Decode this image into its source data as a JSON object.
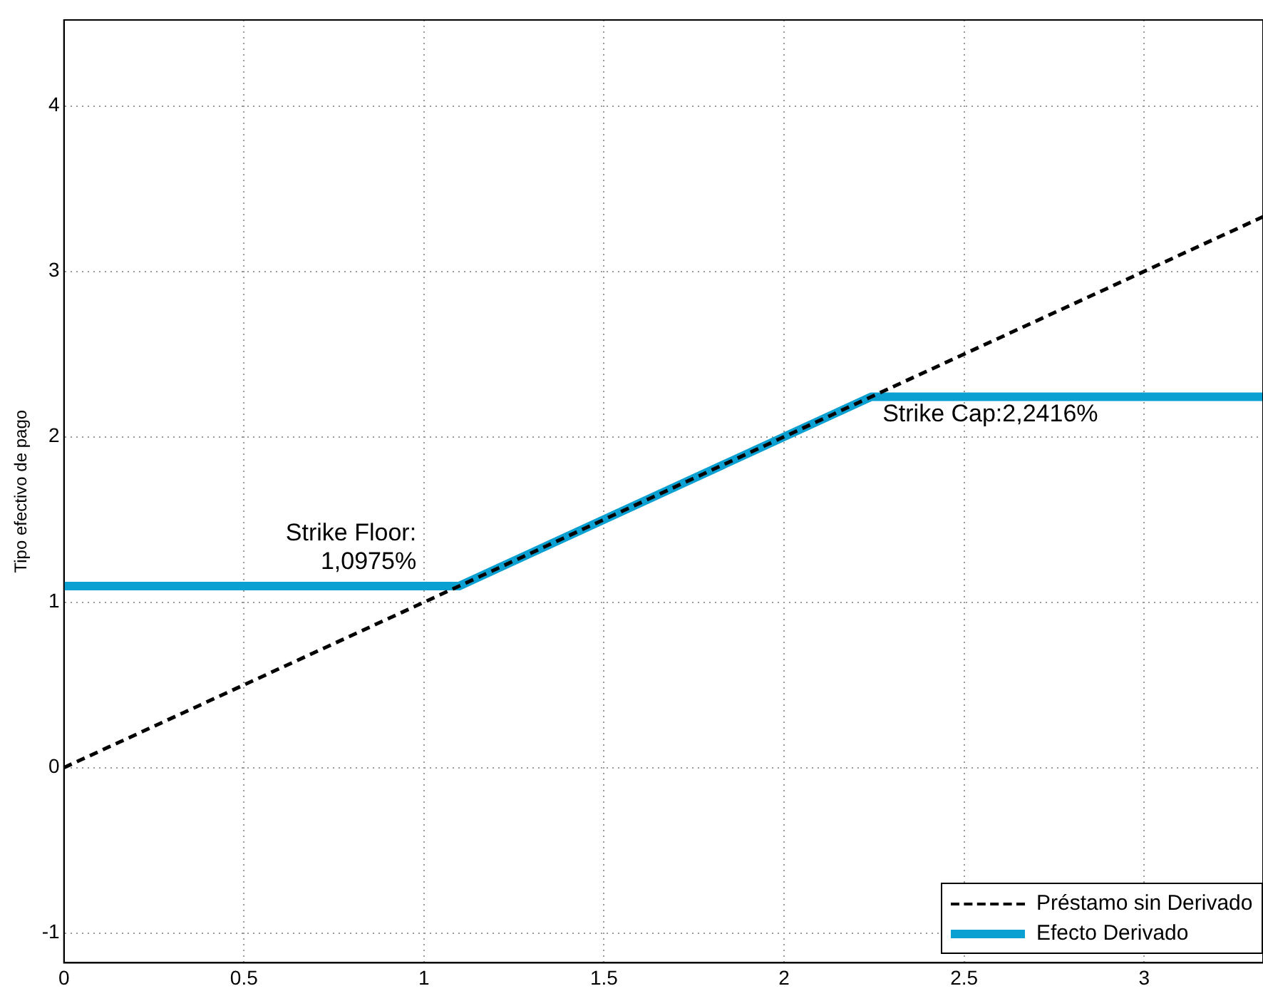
{
  "chart_data": {
    "type": "line",
    "ylabel": "Tipo efectivo de pago",
    "xlim": [
      0,
      3.33
    ],
    "xticks": [
      {
        "value": 0,
        "label": "0"
      },
      {
        "value": 0.5,
        "label": "0.5"
      },
      {
        "value": 1,
        "label": "1"
      },
      {
        "value": 1.5,
        "label": "1.5"
      },
      {
        "value": 2,
        "label": "2"
      },
      {
        "value": 2.5,
        "label": "2.5"
      },
      {
        "value": 3,
        "label": "3"
      }
    ],
    "ylim": [
      -1.18,
      4.52
    ],
    "yticks": [
      -1,
      0,
      1,
      2,
      3,
      4
    ],
    "grid": true,
    "legend": "bottom right",
    "series": [
      {
        "name": "Préstamo sin Derivado",
        "color": "#000000",
        "line_style": "dashed",
        "x": [
          0,
          3.33
        ],
        "values": [
          0,
          3.33
        ]
      },
      {
        "name": "Efecto Derivado",
        "color": "#0aa0d2",
        "line_style": "solid",
        "x": [
          0,
          1.0975,
          2.2416,
          3.33
        ],
        "values": [
          1.0975,
          1.0975,
          2.2416,
          2.2416
        ]
      }
    ],
    "annotations": [
      {
        "text": "Strike Floor:\n1,0975%",
        "x": 1.0975,
        "y": 1.0975
      },
      {
        "text": "Strike Cap:2,2416%",
        "x": 2.2416,
        "y": 2.2416
      }
    ]
  }
}
